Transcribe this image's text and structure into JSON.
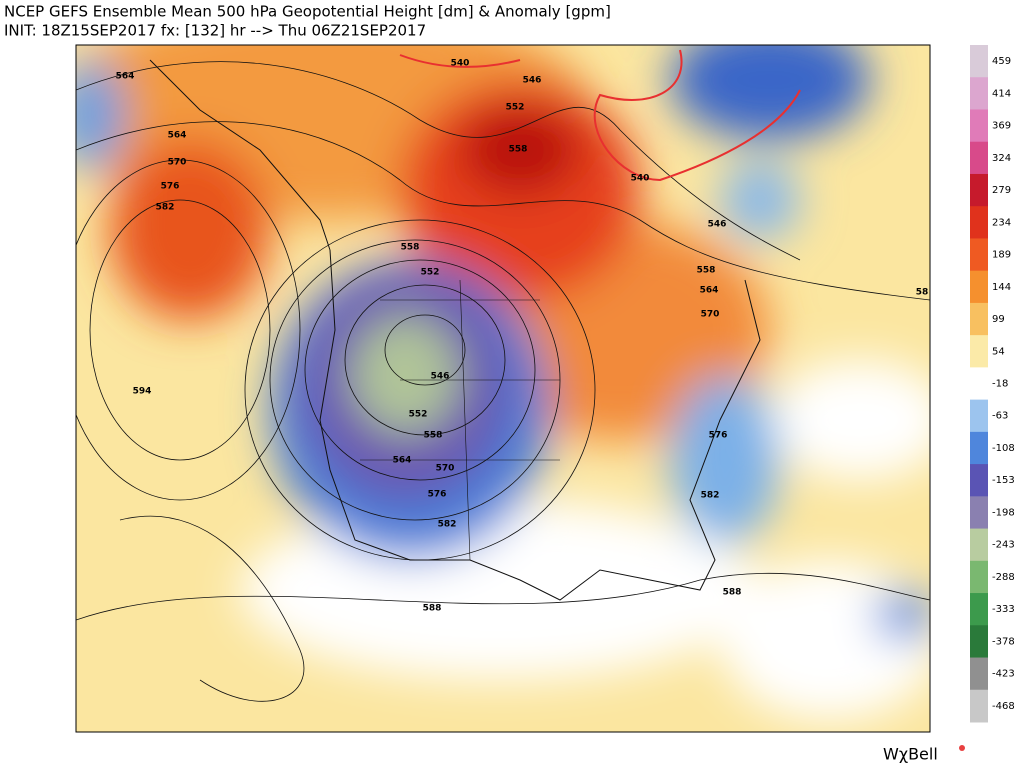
{
  "header": {
    "title": "NCEP GEFS Ensemble Mean 500 hPa Geopotential Height [dm] & Anomaly [gpm]",
    "subtitle": "INIT: 18Z15SEP2017 fx: [132] hr --> Thu 06Z21SEP2017"
  },
  "colorbar": {
    "ticks": [
      459,
      414,
      369,
      324,
      279,
      234,
      189,
      144,
      99,
      54,
      -18,
      -63,
      -108,
      -153,
      -198,
      -243,
      -288,
      -333,
      -378,
      -423,
      -468
    ],
    "colors": [
      "#d9cbd9",
      "#dca6cf",
      "#e07bb8",
      "#d84a8a",
      "#c61a2c",
      "#e0321c",
      "#ef5a22",
      "#f5902e",
      "#f8c060",
      "#fbeaa8",
      "#ffffff",
      "#9cc4ee",
      "#4f86dc",
      "#5a54b4",
      "#8a80b0",
      "#b8cca0",
      "#7ab870",
      "#3c9a4c",
      "#2a7a3a",
      "#909090",
      "#c8c8c8"
    ]
  },
  "contour_labels": [
    564,
    564,
    570,
    576,
    582,
    594,
    540,
    546,
    552,
    558,
    540,
    546,
    558,
    552,
    558,
    564,
    570,
    546,
    552,
    558,
    564,
    570,
    576,
    582,
    576,
    582,
    588,
    588,
    58
  ],
  "brand": "WχBell"
}
